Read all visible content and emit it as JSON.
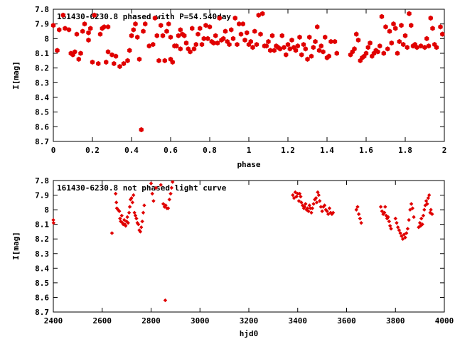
{
  "chart_data": [
    {
      "type": "scatter",
      "title": "161430-6230.8 phased with P=54.540day",
      "xlabel": "phase",
      "ylabel": "I[mag]",
      "xlim": [
        0,
        2
      ],
      "ylim": [
        8.7,
        7.8
      ],
      "y_inverted": true,
      "xticks": [
        "0",
        "0.2",
        "0.4",
        "0.6",
        "0.8",
        "1",
        "1.2",
        "1.4",
        "1.6",
        "1.8",
        "2"
      ],
      "yticks": [
        "7.8",
        "7.9",
        "8",
        "8.1",
        "8.2",
        "8.3",
        "8.4",
        "8.5",
        "8.6",
        "8.7"
      ],
      "marker": "hexagon",
      "color": "#e00000",
      "grid": false,
      "points": [
        [
          0.0,
          7.91
        ],
        [
          0.02,
          8.08
        ],
        [
          0.03,
          7.94
        ],
        [
          0.05,
          7.84
        ],
        [
          0.06,
          7.93
        ],
        [
          0.08,
          7.94
        ],
        [
          0.09,
          8.1
        ],
        [
          0.1,
          8.11
        ],
        [
          0.11,
          8.09
        ],
        [
          0.12,
          7.97
        ],
        [
          0.13,
          8.14
        ],
        [
          0.14,
          8.1
        ],
        [
          0.15,
          7.95
        ],
        [
          0.16,
          7.9
        ],
        [
          0.18,
          8.01
        ],
        [
          0.18,
          7.96
        ],
        [
          0.19,
          7.93
        ],
        [
          0.2,
          8.16
        ],
        [
          0.21,
          7.84
        ],
        [
          0.23,
          8.17
        ],
        [
          0.24,
          7.97
        ],
        [
          0.25,
          7.93
        ],
        [
          0.26,
          7.92
        ],
        [
          0.27,
          8.16
        ],
        [
          0.28,
          7.92
        ],
        [
          0.28,
          8.09
        ],
        [
          0.3,
          8.11
        ],
        [
          0.31,
          8.17
        ],
        [
          0.32,
          8.12
        ],
        [
          0.34,
          8.19
        ],
        [
          0.36,
          8.17
        ],
        [
          0.38,
          8.15
        ],
        [
          0.39,
          8.08
        ],
        [
          0.4,
          7.98
        ],
        [
          0.41,
          7.94
        ],
        [
          0.42,
          7.9
        ],
        [
          0.43,
          7.99
        ],
        [
          0.44,
          8.14
        ],
        [
          0.45,
          8.62
        ],
        [
          0.46,
          7.95
        ],
        [
          0.47,
          7.9
        ],
        [
          0.49,
          8.05
        ],
        [
          0.51,
          8.04
        ],
        [
          0.52,
          7.86
        ],
        [
          0.53,
          7.98
        ],
        [
          0.54,
          8.15
        ],
        [
          0.55,
          7.91
        ],
        [
          0.56,
          7.98
        ],
        [
          0.57,
          8.15
        ],
        [
          0.58,
          7.95
        ],
        [
          0.59,
          7.9
        ],
        [
          0.6,
          8.14
        ],
        [
          0.6,
          7.99
        ],
        [
          0.61,
          8.16
        ],
        [
          0.62,
          8.05
        ],
        [
          0.63,
          8.05
        ],
        [
          0.64,
          7.98
        ],
        [
          0.65,
          8.07
        ],
        [
          0.65,
          7.94
        ],
        [
          0.66,
          7.97
        ],
        [
          0.67,
          7.98
        ],
        [
          0.68,
          8.03
        ],
        [
          0.69,
          8.07
        ],
        [
          0.7,
          8.09
        ],
        [
          0.71,
          7.93
        ],
        [
          0.72,
          8.07
        ],
        [
          0.73,
          8.04
        ],
        [
          0.74,
          7.97
        ],
        [
          0.75,
          7.93
        ],
        [
          0.76,
          8.04
        ],
        [
          0.77,
          8.0
        ],
        [
          0.78,
          7.91
        ],
        [
          0.79,
          8.0
        ],
        [
          0.8,
          7.92
        ],
        [
          0.81,
          8.02
        ],
        [
          0.82,
          8.03
        ],
        [
          0.83,
          7.98
        ],
        [
          0.84,
          8.03
        ],
        [
          0.85,
          7.86
        ],
        [
          0.86,
          8.01
        ],
        [
          0.87,
          8.0
        ],
        [
          0.88,
          7.95
        ],
        [
          0.89,
          8.02
        ],
        [
          0.9,
          8.04
        ],
        [
          0.91,
          7.94
        ],
        [
          0.92,
          8.0
        ],
        [
          0.93,
          7.86
        ],
        [
          0.94,
          8.04
        ],
        [
          0.95,
          7.9
        ],
        [
          0.96,
          7.97
        ],
        [
          0.97,
          7.9
        ],
        [
          0.98,
          8.01
        ],
        [
          0.99,
          7.96
        ],
        [
          1.0,
          8.04
        ],
        [
          1.01,
          8.02
        ],
        [
          1.02,
          8.06
        ],
        [
          1.03,
          7.95
        ],
        [
          1.04,
          8.04
        ],
        [
          1.05,
          7.84
        ],
        [
          1.06,
          7.97
        ],
        [
          1.07,
          7.83
        ],
        [
          1.08,
          8.05
        ],
        [
          1.09,
          8.05
        ],
        [
          1.1,
          8.02
        ],
        [
          1.11,
          8.08
        ],
        [
          1.12,
          7.98
        ],
        [
          1.13,
          8.08
        ],
        [
          1.14,
          8.05
        ],
        [
          1.15,
          8.06
        ],
        [
          1.16,
          8.07
        ],
        [
          1.17,
          7.98
        ],
        [
          1.18,
          8.06
        ],
        [
          1.19,
          8.11
        ],
        [
          1.2,
          8.04
        ],
        [
          1.21,
          8.07
        ],
        [
          1.22,
          8.01
        ],
        [
          1.23,
          8.06
        ],
        [
          1.24,
          8.08
        ],
        [
          1.25,
          8.05
        ],
        [
          1.26,
          7.99
        ],
        [
          1.27,
          8.11
        ],
        [
          1.28,
          8.04
        ],
        [
          1.29,
          8.07
        ],
        [
          1.3,
          8.14
        ],
        [
          1.31,
          7.99
        ],
        [
          1.32,
          8.12
        ],
        [
          1.33,
          8.06
        ],
        [
          1.34,
          8.02
        ],
        [
          1.35,
          7.92
        ],
        [
          1.36,
          8.08
        ],
        [
          1.37,
          8.05
        ],
        [
          1.38,
          8.09
        ],
        [
          1.39,
          7.99
        ],
        [
          1.4,
          8.13
        ],
        [
          1.41,
          8.12
        ],
        [
          1.42,
          8.02
        ],
        [
          1.44,
          8.02
        ],
        [
          1.45,
          8.1
        ],
        [
          1.52,
          8.11
        ],
        [
          1.53,
          8.09
        ],
        [
          1.54,
          8.07
        ],
        [
          1.55,
          7.97
        ],
        [
          1.56,
          8.01
        ],
        [
          1.57,
          8.15
        ],
        [
          1.58,
          8.13
        ],
        [
          1.59,
          8.12
        ],
        [
          1.6,
          8.1
        ],
        [
          1.61,
          8.06
        ],
        [
          1.62,
          8.03
        ],
        [
          1.63,
          8.12
        ],
        [
          1.64,
          8.1
        ],
        [
          1.65,
          8.08
        ],
        [
          1.66,
          8.09
        ],
        [
          1.67,
          8.05
        ],
        [
          1.68,
          7.85
        ],
        [
          1.69,
          8.1
        ],
        [
          1.7,
          7.92
        ],
        [
          1.71,
          8.07
        ],
        [
          1.72,
          7.95
        ],
        [
          1.73,
          8.03
        ],
        [
          1.74,
          7.9
        ],
        [
          1.75,
          7.93
        ],
        [
          1.76,
          8.1
        ],
        [
          1.77,
          8.02
        ],
        [
          1.78,
          7.91
        ],
        [
          1.79,
          8.04
        ],
        [
          1.8,
          7.98
        ],
        [
          1.81,
          8.06
        ],
        [
          1.82,
          7.83
        ],
        [
          1.83,
          7.91
        ],
        [
          1.84,
          8.05
        ],
        [
          1.85,
          8.04
        ],
        [
          1.86,
          8.06
        ],
        [
          1.88,
          8.05
        ],
        [
          1.9,
          8.06
        ],
        [
          1.91,
          8.0
        ],
        [
          1.92,
          8.05
        ],
        [
          1.93,
          7.86
        ],
        [
          1.94,
          7.93
        ],
        [
          1.95,
          8.04
        ],
        [
          1.96,
          8.06
        ],
        [
          1.98,
          7.92
        ],
        [
          1.99,
          7.97
        ]
      ]
    },
    {
      "type": "scatter",
      "title": "161430-6230.8 not phased light curve",
      "xlabel": "hjd0",
      "ylabel": "I[mag]",
      "xlim": [
        2400,
        4000
      ],
      "ylim": [
        8.7,
        7.8
      ],
      "y_inverted": true,
      "xticks": [
        "2400",
        "2600",
        "2800",
        "3000",
        "3200",
        "3400",
        "3600",
        "3800",
        "4000"
      ],
      "yticks": [
        "7.8",
        "7.9",
        "8",
        "8.1",
        "8.2",
        "8.3",
        "8.4",
        "8.5",
        "8.6",
        "8.7"
      ],
      "marker": "diamond",
      "color": "#e00000",
      "grid": false,
      "points": [
        [
          2400,
          8.07
        ],
        [
          2401,
          8.09
        ],
        [
          2640,
          8.16
        ],
        [
          2655,
          7.89
        ],
        [
          2658,
          7.95
        ],
        [
          2660,
          7.99
        ],
        [
          2665,
          8.0
        ],
        [
          2670,
          8.01
        ],
        [
          2673,
          8.06
        ],
        [
          2676,
          8.08
        ],
        [
          2680,
          8.04
        ],
        [
          2683,
          8.09
        ],
        [
          2686,
          8.1
        ],
        [
          2690,
          8.07
        ],
        [
          2693,
          8.1
        ],
        [
          2696,
          8.11
        ],
        [
          2700,
          8.08
        ],
        [
          2703,
          8.05
        ],
        [
          2706,
          8.09
        ],
        [
          2710,
          8.02
        ],
        [
          2713,
          7.98
        ],
        [
          2716,
          7.93
        ],
        [
          2720,
          7.92
        ],
        [
          2724,
          7.95
        ],
        [
          2728,
          7.9
        ],
        [
          2732,
          8.02
        ],
        [
          2736,
          8.04
        ],
        [
          2740,
          8.06
        ],
        [
          2744,
          8.09
        ],
        [
          2748,
          8.1
        ],
        [
          2752,
          8.14
        ],
        [
          2756,
          8.15
        ],
        [
          2760,
          8.12
        ],
        [
          2764,
          8.08
        ],
        [
          2768,
          8.02
        ],
        [
          2772,
          7.97
        ],
        [
          2800,
          7.82
        ],
        [
          2805,
          7.89
        ],
        [
          2810,
          7.94
        ],
        [
          2820,
          7.85
        ],
        [
          2840,
          7.83
        ],
        [
          2850,
          7.96
        ],
        [
          2855,
          7.98
        ],
        [
          2858,
          8.62
        ],
        [
          2860,
          7.97
        ],
        [
          2865,
          7.99
        ],
        [
          2870,
          7.99
        ],
        [
          2875,
          7.93
        ],
        [
          2880,
          7.89
        ],
        [
          2884,
          7.85
        ],
        [
          2888,
          7.81
        ],
        [
          3380,
          7.9
        ],
        [
          3385,
          7.92
        ],
        [
          3390,
          7.88
        ],
        [
          3395,
          7.91
        ],
        [
          3400,
          7.89
        ],
        [
          3405,
          7.94
        ],
        [
          3408,
          7.89
        ],
        [
          3412,
          7.91
        ],
        [
          3415,
          7.95
        ],
        [
          3420,
          7.97
        ],
        [
          3425,
          7.99
        ],
        [
          3428,
          7.98
        ],
        [
          3432,
          7.96
        ],
        [
          3436,
          8.0
        ],
        [
          3440,
          7.99
        ],
        [
          3444,
          8.01
        ],
        [
          3448,
          7.97
        ],
        [
          3452,
          7.99
        ],
        [
          3456,
          8.02
        ],
        [
          3460,
          7.99
        ],
        [
          3465,
          7.96
        ],
        [
          3470,
          7.93
        ],
        [
          3475,
          7.92
        ],
        [
          3478,
          7.95
        ],
        [
          3482,
          7.88
        ],
        [
          3486,
          7.9
        ],
        [
          3490,
          7.94
        ],
        [
          3495,
          7.98
        ],
        [
          3500,
          8.01
        ],
        [
          3505,
          7.98
        ],
        [
          3510,
          7.97
        ],
        [
          3515,
          8.0
        ],
        [
          3520,
          8.01
        ],
        [
          3525,
          8.03
        ],
        [
          3530,
          7.99
        ],
        [
          3535,
          8.02
        ],
        [
          3540,
          8.03
        ],
        [
          3545,
          8.02
        ],
        [
          3640,
          8.0
        ],
        [
          3645,
          7.98
        ],
        [
          3650,
          8.03
        ],
        [
          3655,
          8.06
        ],
        [
          3660,
          8.09
        ],
        [
          3740,
          7.98
        ],
        [
          3745,
          8.01
        ],
        [
          3750,
          8.03
        ],
        [
          3755,
          8.02
        ],
        [
          3758,
          7.98
        ],
        [
          3762,
          8.04
        ],
        [
          3766,
          8.06
        ],
        [
          3770,
          8.05
        ],
        [
          3774,
          8.08
        ],
        [
          3778,
          8.11
        ],
        [
          3782,
          8.13
        ],
        [
          3800,
          8.06
        ],
        [
          3805,
          8.09
        ],
        [
          3810,
          8.12
        ],
        [
          3815,
          8.14
        ],
        [
          3820,
          8.16
        ],
        [
          3825,
          8.18
        ],
        [
          3830,
          8.2
        ],
        [
          3835,
          8.17
        ],
        [
          3840,
          8.19
        ],
        [
          3845,
          8.16
        ],
        [
          3850,
          8.13
        ],
        [
          3855,
          8.07
        ],
        [
          3860,
          8.0
        ],
        [
          3865,
          7.96
        ],
        [
          3870,
          7.99
        ],
        [
          3875,
          8.05
        ],
        [
          3895,
          8.12
        ],
        [
          3900,
          8.09
        ],
        [
          3903,
          8.11
        ],
        [
          3906,
          8.06
        ],
        [
          3910,
          8.1
        ],
        [
          3914,
          8.04
        ],
        [
          3918,
          8.0
        ],
        [
          3922,
          7.97
        ],
        [
          3926,
          7.94
        ],
        [
          3930,
          7.96
        ],
        [
          3934,
          7.92
        ],
        [
          3938,
          7.9
        ],
        [
          3942,
          8.02
        ],
        [
          3945,
          8.0
        ],
        [
          3950,
          8.03
        ]
      ]
    }
  ]
}
